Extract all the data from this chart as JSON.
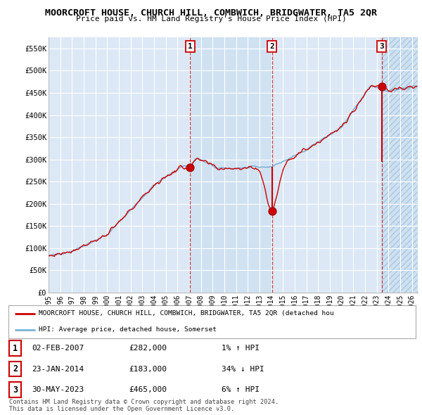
{
  "title": "MOORCROFT HOUSE, CHURCH HILL, COMBWICH, BRIDGWATER, TA5 2QR",
  "subtitle": "Price paid vs. HM Land Registry's House Price Index (HPI)",
  "xlim_start": 1995.0,
  "xlim_end": 2026.5,
  "ylim": [
    0,
    575000
  ],
  "yticks": [
    0,
    50000,
    100000,
    150000,
    200000,
    250000,
    300000,
    350000,
    400000,
    450000,
    500000,
    550000
  ],
  "ytick_labels": [
    "£0",
    "£50K",
    "£100K",
    "£150K",
    "£200K",
    "£250K",
    "£300K",
    "£350K",
    "£400K",
    "£450K",
    "£500K",
    "£550K"
  ],
  "hpi_color": "#7ab0d4",
  "price_color": "#cc0000",
  "marker_color": "#cc0000",
  "sale1_x": 2007.085,
  "sale1_y": 282000,
  "sale1_hpi_y": 282000,
  "sale2_x": 2014.065,
  "sale2_y": 183000,
  "sale2_hpi_y": 275000,
  "sale3_x": 2023.415,
  "sale3_y": 465000,
  "sale3_hpi_y": 465000,
  "legend_line1": "MOORCROFT HOUSE, CHURCH HILL, COMBWICH, BRIDGWATER, TA5 2QR (detached hou",
  "legend_line2": "HPI: Average price, detached house, Somerset",
  "table_row1": [
    "1",
    "02-FEB-2007",
    "£282,000",
    "1% ↑ HPI"
  ],
  "table_row2": [
    "2",
    "23-JAN-2014",
    "£183,000",
    "34% ↓ HPI"
  ],
  "table_row3": [
    "3",
    "30-MAY-2023",
    "£465,000",
    "6% ↑ HPI"
  ],
  "footer": "Contains HM Land Registry data © Crown copyright and database right 2024.\nThis data is licensed under the Open Government Licence v3.0.",
  "background_color": "#ffffff",
  "plot_bg_color": "#dce8f5",
  "grid_color": "#ffffff"
}
